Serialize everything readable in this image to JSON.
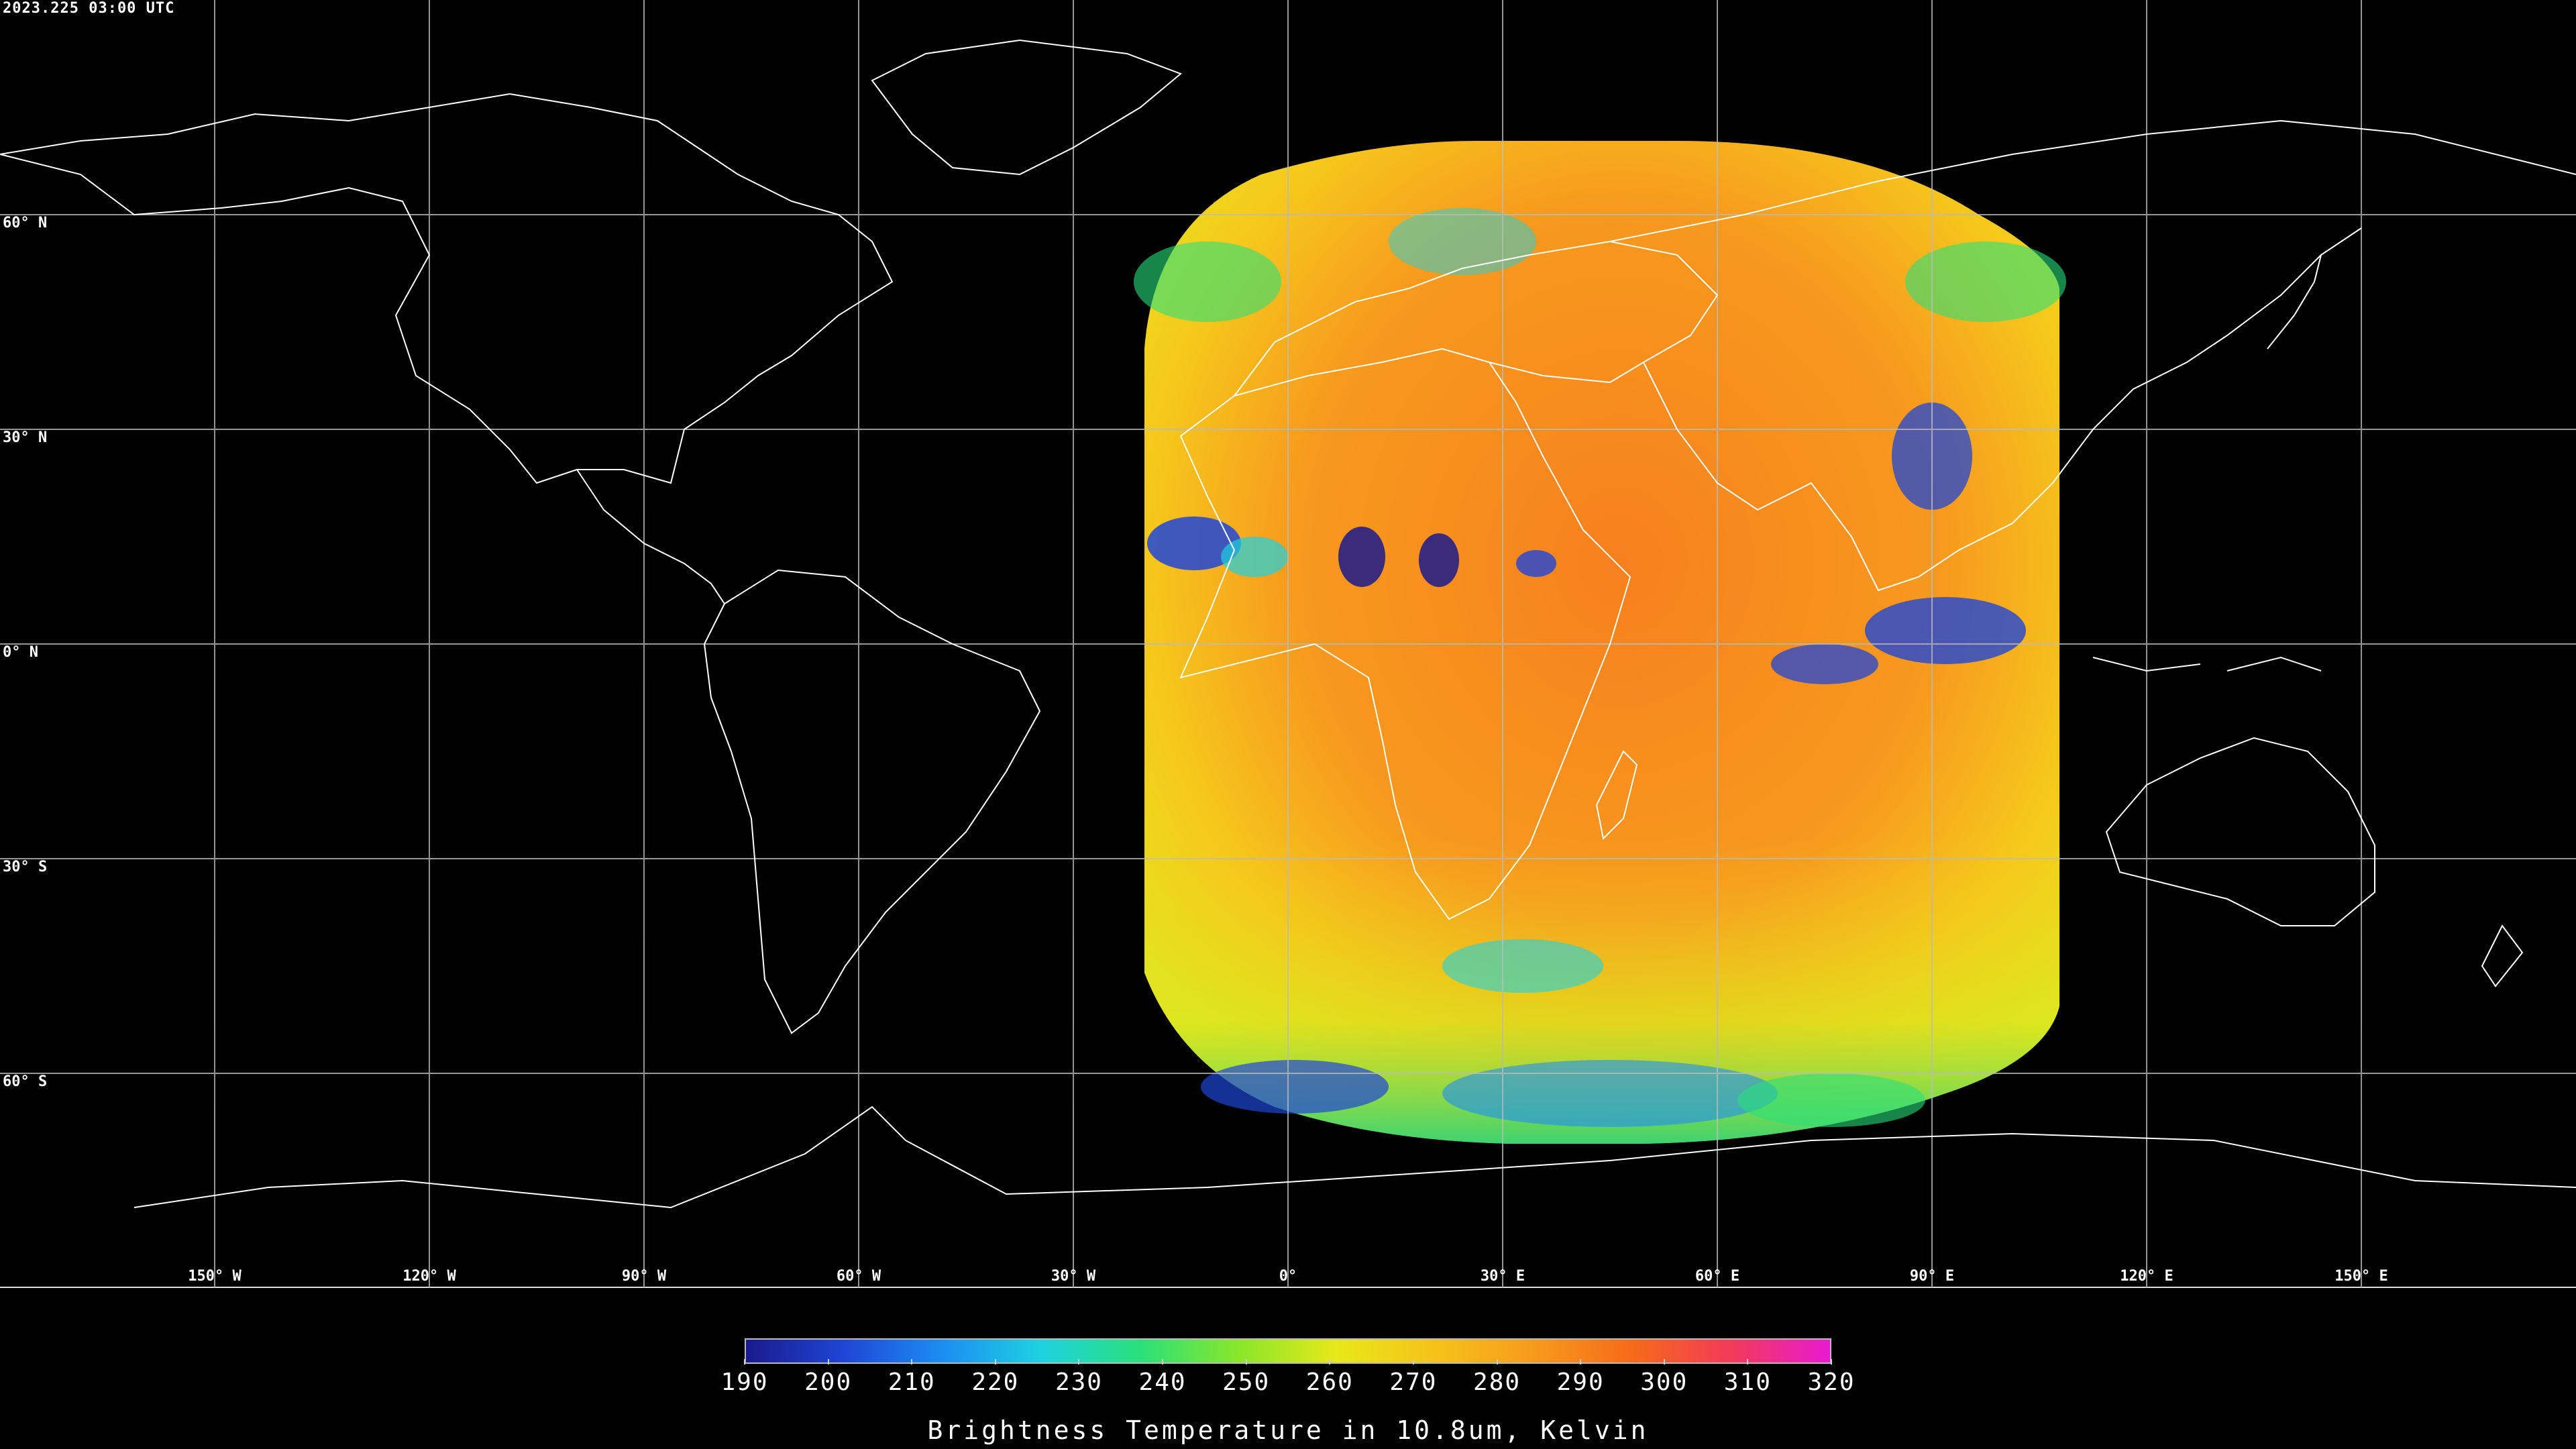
{
  "timestamp": "2023.225 03:00 UTC",
  "lat_labels": [
    "60° N",
    "30° N",
    "0° N",
    "30° S",
    "60° S"
  ],
  "lon_labels": [
    "150° W",
    "120° W",
    "90° W",
    "60° W",
    "30° W",
    "0°",
    "30° E",
    "60° E",
    "90° E",
    "120° E",
    "150° E"
  ],
  "colorbar": {
    "title": "Brightness Temperature in 10.8um, Kelvin",
    "ticks": [
      "190",
      "200",
      "210",
      "220",
      "230",
      "240",
      "250",
      "260",
      "270",
      "280",
      "290",
      "300",
      "310",
      "320"
    ],
    "min": 190,
    "max": 320,
    "colors": [
      "#1a1a8c",
      "#1f46d6",
      "#1c8ef2",
      "#1ed2e0",
      "#2ae07a",
      "#8ae62a",
      "#e8e81a",
      "#f6c21a",
      "#f79a1c",
      "#f66a1a",
      "#f23a5a",
      "#e81ad2"
    ]
  },
  "map": {
    "projection": "equirectangular",
    "grid_spacing_deg": 30,
    "image_colors": {
      "warm": "#f7801e",
      "mid": "#f7b21e",
      "cool": "#e0e61e",
      "cold_cloud": "#2ad2a0",
      "deep_cloud": "#1a46d6"
    }
  }
}
